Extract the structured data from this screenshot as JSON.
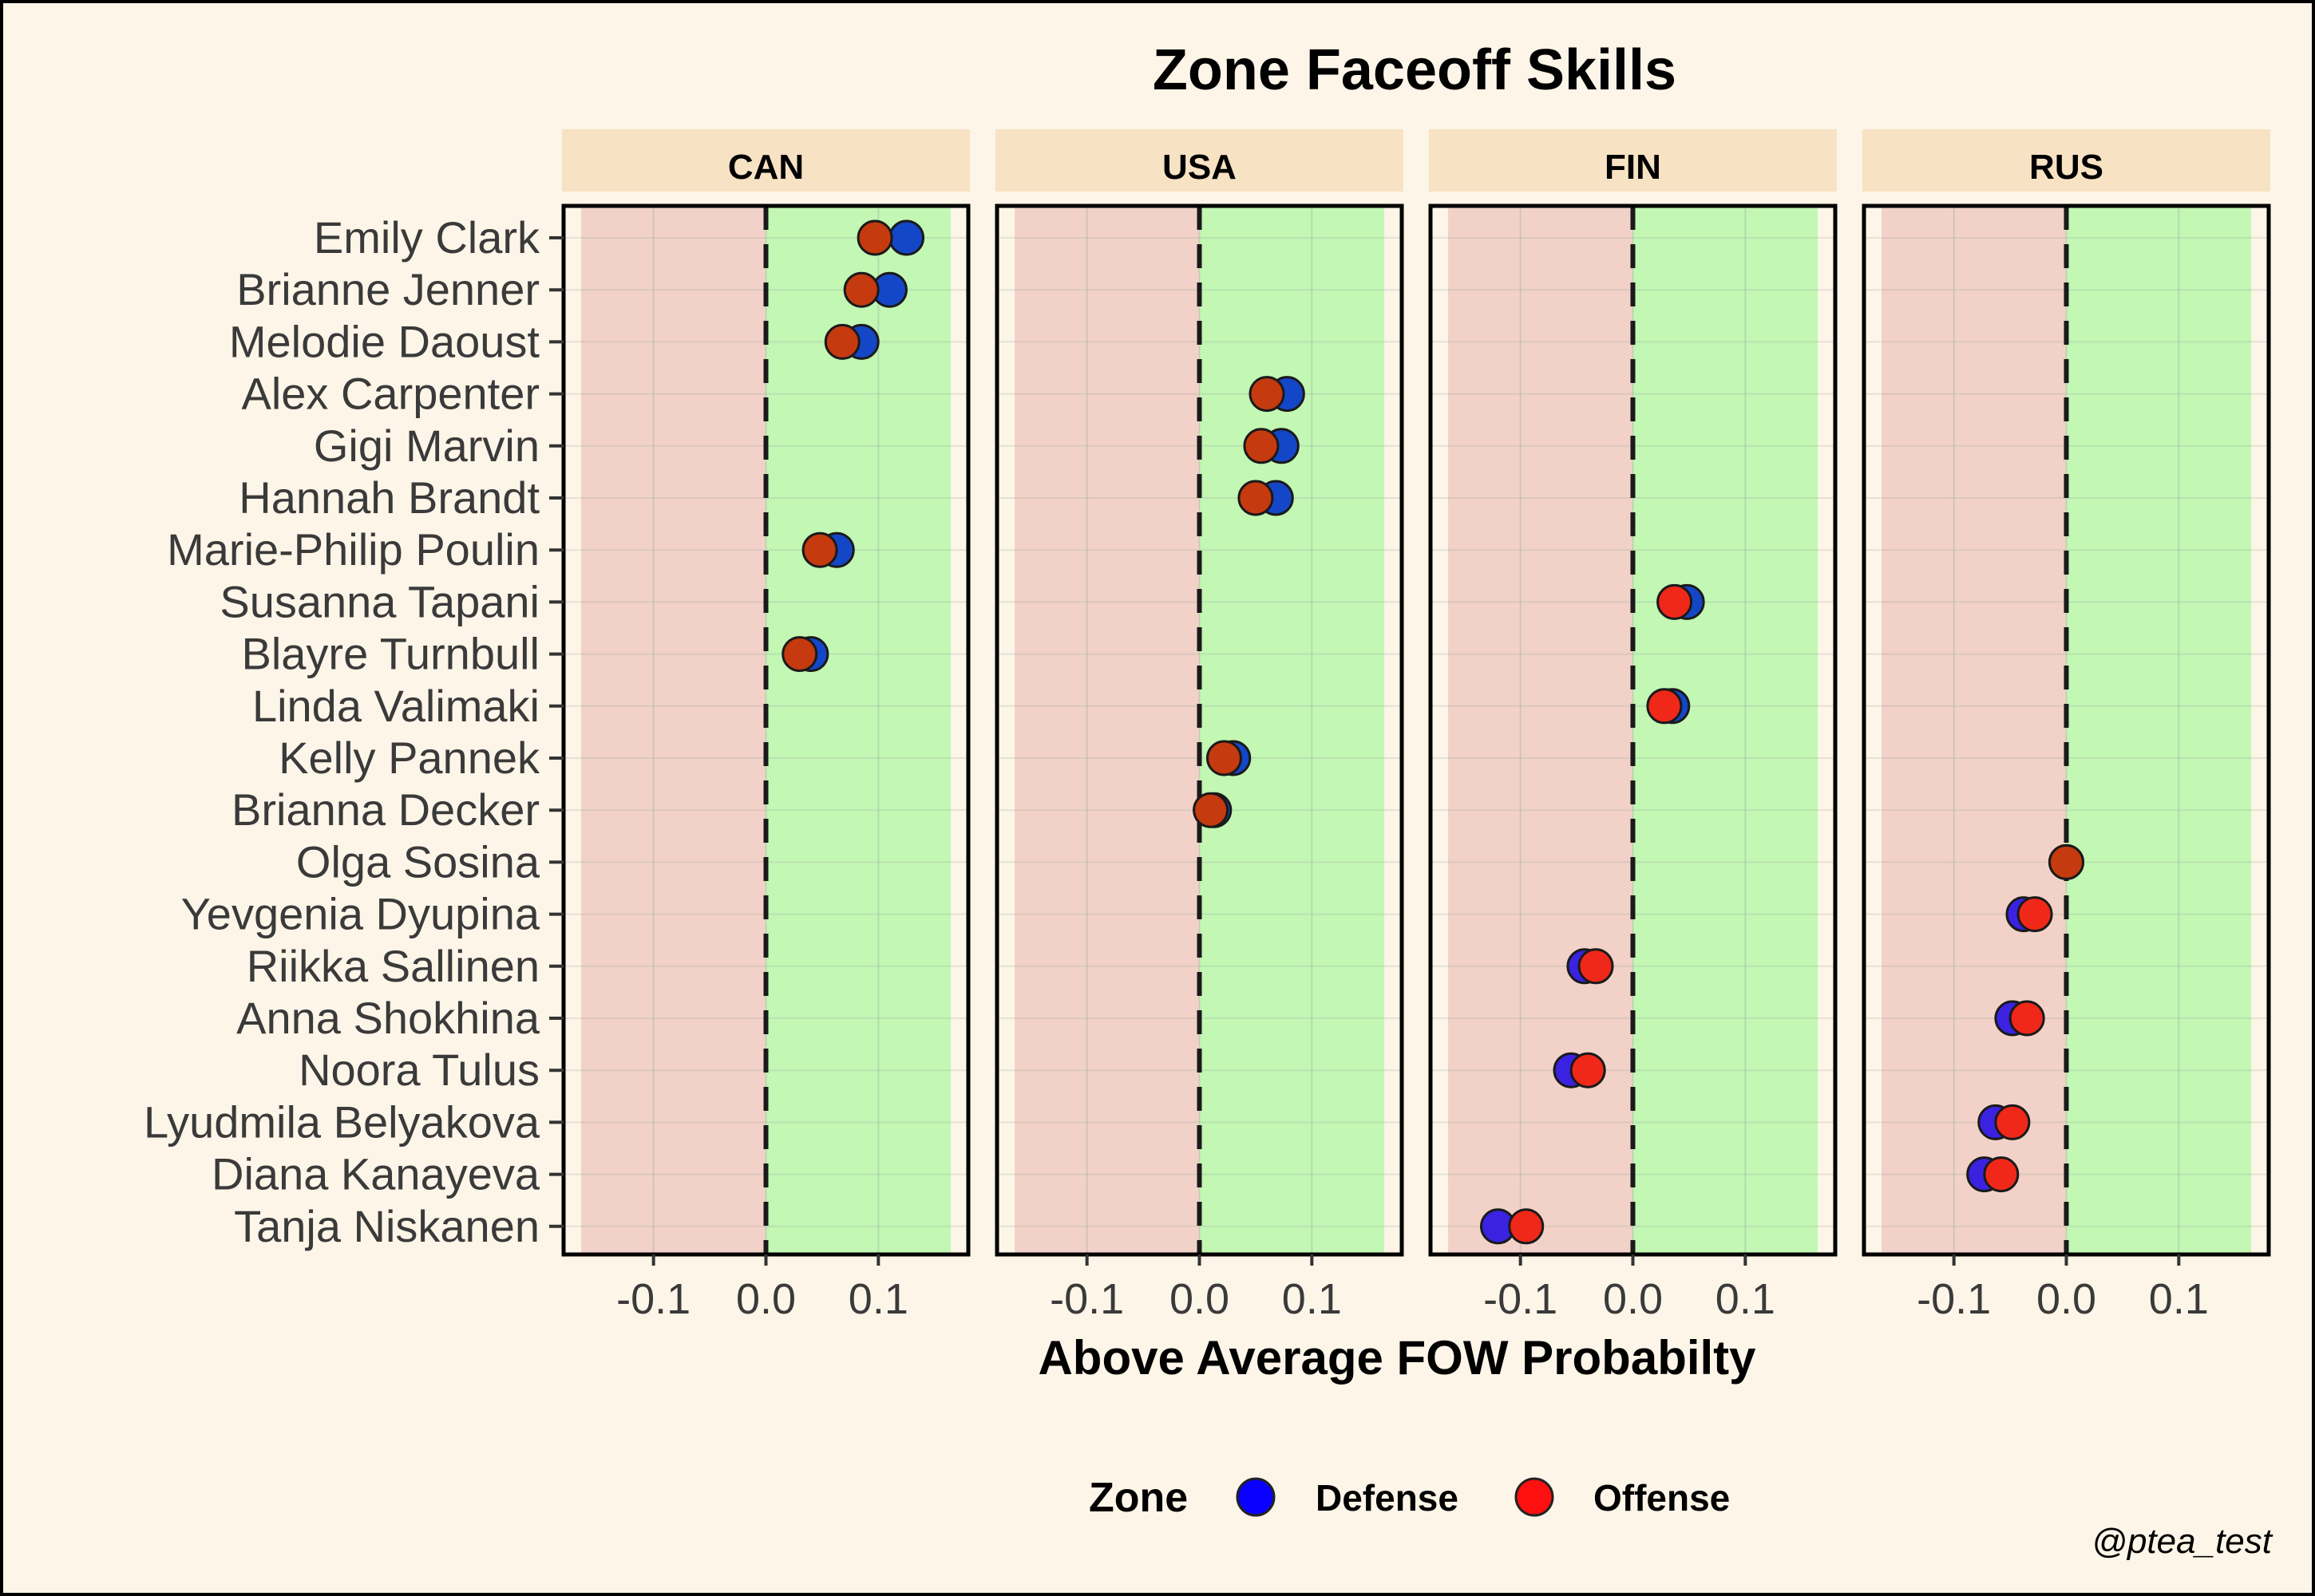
{
  "chart_data": {
    "type": "scatter",
    "title": "Zone Faceoff Skills",
    "xlabel": "Above Average FOW Probabilty",
    "ylabel": "",
    "xlim": [
      -0.18,
      0.18
    ],
    "xticks": [
      -0.1,
      0.0,
      0.1
    ],
    "xtick_labels": [
      "-0.1",
      "0.0",
      "0.1"
    ],
    "reference_line": 0,
    "grid": true,
    "region_colors": {
      "negative": "#F2D2C8",
      "positive": "#C2F7B4"
    },
    "panels": [
      "CAN",
      "USA",
      "FIN",
      "RUS"
    ],
    "players": [
      {
        "name": "Emily Clark",
        "team": "CAN",
        "defense": 0.125,
        "offense": 0.097
      },
      {
        "name": "Brianne Jenner",
        "team": "CAN",
        "defense": 0.11,
        "offense": 0.085
      },
      {
        "name": "Melodie Daoust",
        "team": "CAN",
        "defense": 0.085,
        "offense": 0.068
      },
      {
        "name": "Alex Carpenter",
        "team": "USA",
        "defense": 0.078,
        "offense": 0.06
      },
      {
        "name": "Gigi Marvin",
        "team": "USA",
        "defense": 0.073,
        "offense": 0.055
      },
      {
        "name": "Hannah Brandt",
        "team": "USA",
        "defense": 0.068,
        "offense": 0.05
      },
      {
        "name": "Marie-Philip Poulin",
        "team": "CAN",
        "defense": 0.063,
        "offense": 0.048
      },
      {
        "name": "Susanna Tapani",
        "team": "FIN",
        "defense": 0.048,
        "offense": 0.037
      },
      {
        "name": "Blayre Turnbull",
        "team": "CAN",
        "defense": 0.04,
        "offense": 0.03
      },
      {
        "name": "Linda Valimaki",
        "team": "FIN",
        "defense": 0.035,
        "offense": 0.028
      },
      {
        "name": "Kelly Pannek",
        "team": "USA",
        "defense": 0.03,
        "offense": 0.022
      },
      {
        "name": "Brianna Decker",
        "team": "USA",
        "defense": 0.013,
        "offense": 0.01
      },
      {
        "name": "Olga Sosina",
        "team": "RUS",
        "defense": 0.0,
        "offense": 0.0
      },
      {
        "name": "Yevgenia Dyupina",
        "team": "RUS",
        "defense": -0.038,
        "offense": -0.028
      },
      {
        "name": "Riikka Sallinen",
        "team": "FIN",
        "defense": -0.043,
        "offense": -0.033
      },
      {
        "name": "Anna Shokhina",
        "team": "RUS",
        "defense": -0.048,
        "offense": -0.035
      },
      {
        "name": "Noora Tulus",
        "team": "FIN",
        "defense": -0.055,
        "offense": -0.04
      },
      {
        "name": "Lyudmila Belyakova",
        "team": "RUS",
        "defense": -0.063,
        "offense": -0.048
      },
      {
        "name": "Diana Kanayeva",
        "team": "RUS",
        "defense": -0.073,
        "offense": -0.058
      },
      {
        "name": "Tanja Niskanen",
        "team": "FIN",
        "defense": -0.12,
        "offense": -0.095
      }
    ],
    "series": [
      {
        "name": "Defense",
        "key": "defense",
        "legend_color": "#0A00FF"
      },
      {
        "name": "Offense",
        "key": "offense",
        "legend_color": "#FF1010"
      }
    ],
    "legend": {
      "title": "Zone",
      "position": "bottom"
    }
  },
  "credit": "@ptea_test"
}
